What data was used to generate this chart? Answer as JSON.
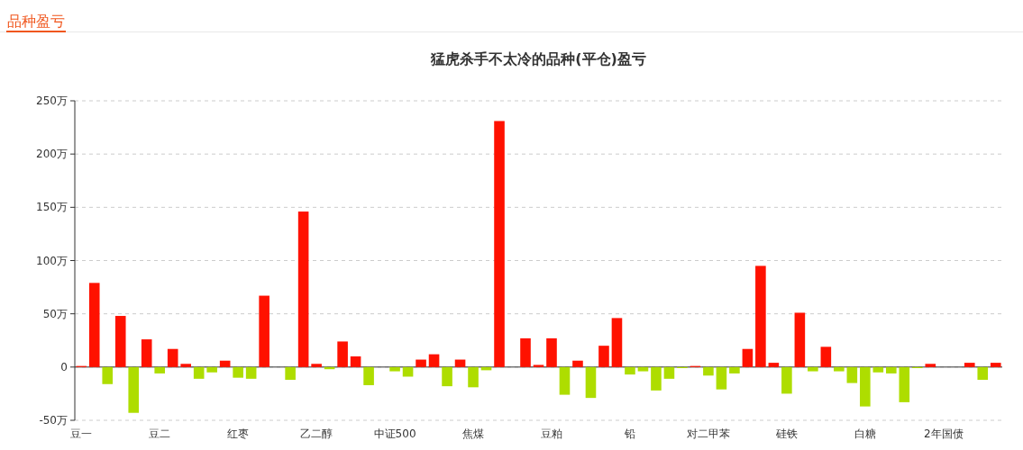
{
  "chart_data": {
    "type": "bar",
    "title": "猛虎杀手不太冷的品种(平仓)盈亏",
    "annotations": [
      "品种盈亏"
    ],
    "categories": [
      "豆一",
      null,
      null,
      null,
      null,
      null,
      "豆二",
      null,
      null,
      null,
      null,
      null,
      "红枣",
      null,
      null,
      null,
      null,
      null,
      "乙二醇",
      null,
      null,
      null,
      null,
      null,
      "中证500",
      null,
      null,
      null,
      null,
      null,
      "焦煤",
      null,
      null,
      null,
      null,
      null,
      "豆粕",
      null,
      null,
      null,
      null,
      null,
      "铅",
      null,
      null,
      null,
      null,
      null,
      "对二甲苯",
      null,
      null,
      null,
      null,
      null,
      "硅铁",
      null,
      null,
      null,
      null,
      null,
      "白糖",
      null,
      null,
      null,
      null,
      null,
      "2年国债",
      null,
      null,
      null,
      null
    ],
    "values": [
      1,
      79,
      -16,
      48,
      -43,
      26,
      -6,
      17,
      3,
      -11,
      -5,
      6,
      -10,
      -11,
      67,
      0,
      -12,
      146,
      3,
      -2,
      24,
      10,
      -17,
      0,
      -4,
      -9,
      7,
      12,
      -18,
      7,
      -19,
      -3,
      231,
      0,
      27,
      2,
      27,
      -26,
      6,
      -29,
      20,
      46,
      -7,
      -4,
      -22,
      -11,
      -1,
      1,
      -8,
      -21,
      -6,
      17,
      95,
      4,
      -25,
      51,
      -4,
      19,
      -4,
      -15,
      -37,
      -5,
      -6,
      -33,
      -1,
      3,
      0,
      0,
      4,
      -12,
      4
    ],
    "colors": [
      "#ff1100",
      "#ff1100",
      "#aedd00",
      "#ff1100",
      "#aedd00",
      "#ff1100",
      "#aedd00",
      "#ff1100",
      "#ff1100",
      "#aedd00",
      "#aedd00",
      "#ff1100",
      "#aedd00",
      "#aedd00",
      "#ff1100",
      "#aedd00",
      "#aedd00",
      "#ff1100",
      "#ff1100",
      "#aedd00",
      "#ff1100",
      "#ff1100",
      "#aedd00",
      "#aedd00",
      "#aedd00",
      "#aedd00",
      "#ff1100",
      "#ff1100",
      "#aedd00",
      "#ff1100",
      "#aedd00",
      "#aedd00",
      "#ff1100",
      "#ff1100",
      "#ff1100",
      "#ff1100",
      "#ff1100",
      "#aedd00",
      "#ff1100",
      "#aedd00",
      "#ff1100",
      "#ff1100",
      "#aedd00",
      "#aedd00",
      "#aedd00",
      "#aedd00",
      "#aedd00",
      "#ff1100",
      "#aedd00",
      "#aedd00",
      "#aedd00",
      "#ff1100",
      "#ff1100",
      "#ff1100",
      "#aedd00",
      "#ff1100",
      "#aedd00",
      "#ff1100",
      "#aedd00",
      "#aedd00",
      "#aedd00",
      "#aedd00",
      "#aedd00",
      "#aedd00",
      "#aedd00",
      "#ff1100",
      "#ff1100",
      "#aedd00",
      "#ff1100",
      "#aedd00",
      "#ff1100"
    ],
    "ylim": [
      -50,
      250
    ],
    "yticks": [
      {
        "value": -50,
        "label": "-50万"
      },
      {
        "value": 0,
        "label": "0"
      },
      {
        "value": 50,
        "label": "50万"
      },
      {
        "value": 100,
        "label": "100万"
      },
      {
        "value": 150,
        "label": "150万"
      },
      {
        "value": 200,
        "label": "200万"
      },
      {
        "value": 250,
        "label": "250万"
      }
    ],
    "grid": "y"
  }
}
